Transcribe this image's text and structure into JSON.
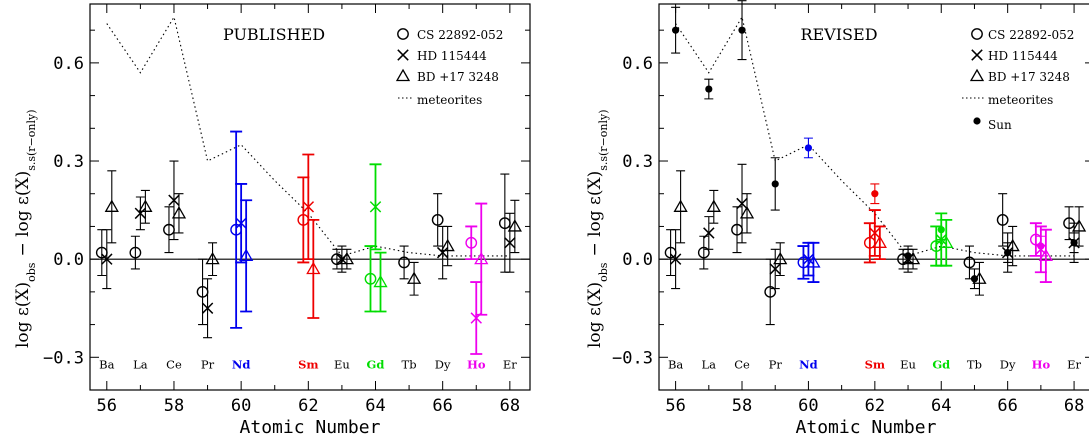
{
  "figure": {
    "ylabel_main": "log ε(X)",
    "ylabel_sub1": "obs",
    "ylabel_minus": "− log ε(X)",
    "ylabel_sub2": "s.s(r−only)",
    "xlabel": "Atomic Number"
  },
  "colors": {
    "black": "#000000",
    "Nd": "#0000ee",
    "Sm": "#ee0000",
    "Gd": "#00dd00",
    "Ho": "#ee00ee"
  },
  "chart_data": [
    {
      "type": "scatter",
      "title": "PUBLISHED",
      "xlabel": "Atomic Number",
      "ylabel": "log ε(X)obs − log ε(X)s.s(r−only)",
      "xlim": [
        55.5,
        68.6
      ],
      "ylim": [
        -0.4,
        0.78
      ],
      "xticks": [
        56,
        58,
        60,
        62,
        64,
        66,
        68
      ],
      "yticks": [
        -0.3,
        0.0,
        0.3,
        0.6
      ],
      "ytick_labels": [
        "−0.3",
        "0.0",
        "0.3",
        "0.6"
      ],
      "grid": false,
      "reference_line": 0.0,
      "legend": {
        "position": "top-right",
        "entries": [
          "CS 22892-052",
          "HD 115444",
          "BD +17 3248",
          "meteorites"
        ]
      },
      "element_labels": [
        {
          "label": "Ba",
          "z": 56,
          "color": "black"
        },
        {
          "label": "La",
          "z": 57,
          "color": "black"
        },
        {
          "label": "Ce",
          "z": 58,
          "color": "black"
        },
        {
          "label": "Pr",
          "z": 59,
          "color": "black"
        },
        {
          "label": "Nd",
          "z": 60,
          "color": "Nd"
        },
        {
          "label": "Sm",
          "z": 62,
          "color": "Sm"
        },
        {
          "label": "Eu",
          "z": 63,
          "color": "black"
        },
        {
          "label": "Gd",
          "z": 64,
          "color": "Gd"
        },
        {
          "label": "Tb",
          "z": 65,
          "color": "black"
        },
        {
          "label": "Dy",
          "z": 66,
          "color": "black"
        },
        {
          "label": "Ho",
          "z": 67,
          "color": "Ho"
        },
        {
          "label": "Er",
          "z": 68,
          "color": "black"
        }
      ],
      "meteorites": {
        "x": [
          56,
          57,
          58,
          59,
          60,
          61,
          62,
          63,
          64,
          65,
          66,
          67,
          68
        ],
        "y": [
          0.72,
          0.57,
          0.74,
          0.3,
          0.35,
          0.24,
          0.14,
          0.01,
          0.04,
          0.02,
          0.01,
          0.01,
          0.01
        ]
      },
      "series": [
        {
          "name": "CS 22892-052",
          "marker": "circle",
          "points": [
            {
              "x": 56,
              "y": 0.02,
              "err": 0.07,
              "color": "black"
            },
            {
              "x": 57,
              "y": 0.02,
              "err": 0.05,
              "color": "black"
            },
            {
              "x": 58,
              "y": 0.09,
              "err": 0.07,
              "color": "black"
            },
            {
              "x": 59,
              "y": -0.1,
              "err": 0.1,
              "color": "black"
            },
            {
              "x": 60,
              "y": 0.09,
              "err": 0.3,
              "color": "Nd"
            },
            {
              "x": 62,
              "y": 0.12,
              "err": 0.13,
              "color": "Sm"
            },
            {
              "x": 63,
              "y": 0.0,
              "err": 0.03,
              "color": "black"
            },
            {
              "x": 64,
              "y": -0.06,
              "err": 0.1,
              "color": "Gd"
            },
            {
              "x": 65,
              "y": -0.01,
              "err": 0.05,
              "color": "black"
            },
            {
              "x": 66,
              "y": 0.12,
              "err": 0.08,
              "color": "black"
            },
            {
              "x": 67,
              "y": 0.05,
              "err": 0.05,
              "color": "Ho"
            },
            {
              "x": 68,
              "y": 0.11,
              "err": 0.15,
              "color": "black"
            }
          ]
        },
        {
          "name": "HD 115444",
          "marker": "cross",
          "points": [
            {
              "x": 56,
              "y": 0.0,
              "err": 0.09,
              "color": "black"
            },
            {
              "x": 57,
              "y": 0.14,
              "err": 0.05,
              "color": "black"
            },
            {
              "x": 58,
              "y": 0.18,
              "err": 0.12,
              "color": "black"
            },
            {
              "x": 59,
              "y": -0.15,
              "err": 0.09,
              "color": "black"
            },
            {
              "x": 60,
              "y": 0.11,
              "err": 0.12,
              "color": "Nd"
            },
            {
              "x": 62,
              "y": 0.16,
              "err": 0.16,
              "color": "Sm"
            },
            {
              "x": 63,
              "y": 0.0,
              "err": 0.04,
              "color": "black"
            },
            {
              "x": 64,
              "y": 0.16,
              "err": 0.13,
              "color": "Gd"
            },
            {
              "x": 66,
              "y": 0.02,
              "err": 0.08,
              "color": "black"
            },
            {
              "x": 67,
              "y": -0.18,
              "err": 0.11,
              "color": "Ho"
            },
            {
              "x": 68,
              "y": 0.05,
              "err": 0.09,
              "color": "black"
            }
          ]
        },
        {
          "name": "BD +17 3248",
          "marker": "triangle",
          "points": [
            {
              "x": 56,
              "y": 0.16,
              "err": 0.11,
              "color": "black"
            },
            {
              "x": 57,
              "y": 0.16,
              "err": 0.05,
              "color": "black"
            },
            {
              "x": 58,
              "y": 0.14,
              "err": 0.06,
              "color": "black"
            },
            {
              "x": 59,
              "y": 0.0,
              "err": 0.05,
              "color": "black"
            },
            {
              "x": 60,
              "y": 0.01,
              "err": 0.17,
              "color": "Nd"
            },
            {
              "x": 62,
              "y": -0.03,
              "err": 0.15,
              "color": "Sm"
            },
            {
              "x": 63,
              "y": 0.0,
              "err": 0.03,
              "color": "black"
            },
            {
              "x": 64,
              "y": -0.07,
              "err": 0.09,
              "color": "Gd"
            },
            {
              "x": 65,
              "y": -0.06,
              "err": 0.05,
              "color": "black"
            },
            {
              "x": 66,
              "y": 0.04,
              "err": 0.06,
              "color": "black"
            },
            {
              "x": 67,
              "y": 0.0,
              "err": 0.17,
              "color": "Ho"
            },
            {
              "x": 68,
              "y": 0.1,
              "err": 0.08,
              "color": "black"
            }
          ]
        }
      ]
    },
    {
      "type": "scatter",
      "title": "REVISED",
      "xlabel": "Atomic Number",
      "ylabel": "log ε(X)obs − log ε(X)s.s(r−only)",
      "xlim": [
        55.5,
        68.6
      ],
      "ylim": [
        -0.4,
        0.78
      ],
      "xticks": [
        56,
        58,
        60,
        62,
        64,
        66,
        68
      ],
      "yticks": [
        -0.3,
        0.0,
        0.3,
        0.6
      ],
      "ytick_labels": [
        "−0.3",
        "0.0",
        "0.3",
        "0.6"
      ],
      "grid": false,
      "reference_line": 0.0,
      "legend": {
        "position": "top-right",
        "entries": [
          "CS 22892-052",
          "HD 115444",
          "BD +17 3248",
          "meteorites",
          "Sun"
        ]
      },
      "element_labels": [
        {
          "label": "Ba",
          "z": 56,
          "color": "black"
        },
        {
          "label": "La",
          "z": 57,
          "color": "black"
        },
        {
          "label": "Ce",
          "z": 58,
          "color": "black"
        },
        {
          "label": "Pr",
          "z": 59,
          "color": "black"
        },
        {
          "label": "Nd",
          "z": 60,
          "color": "Nd"
        },
        {
          "label": "Sm",
          "z": 62,
          "color": "Sm"
        },
        {
          "label": "Eu",
          "z": 63,
          "color": "black"
        },
        {
          "label": "Gd",
          "z": 64,
          "color": "Gd"
        },
        {
          "label": "Tb",
          "z": 65,
          "color": "black"
        },
        {
          "label": "Dy",
          "z": 66,
          "color": "black"
        },
        {
          "label": "Ho",
          "z": 67,
          "color": "Ho"
        },
        {
          "label": "Er",
          "z": 68,
          "color": "black"
        }
      ],
      "meteorites": {
        "x": [
          56,
          57,
          58,
          59,
          60,
          61,
          62,
          63,
          64,
          65,
          66,
          67,
          68
        ],
        "y": [
          0.72,
          0.57,
          0.74,
          0.3,
          0.35,
          0.24,
          0.14,
          0.01,
          0.04,
          0.02,
          0.01,
          0.01,
          0.01
        ]
      },
      "series": [
        {
          "name": "CS 22892-052",
          "marker": "circle",
          "points": [
            {
              "x": 56,
              "y": 0.02,
              "err": 0.07,
              "color": "black"
            },
            {
              "x": 57,
              "y": 0.02,
              "err": 0.05,
              "color": "black"
            },
            {
              "x": 58,
              "y": 0.09,
              "err": 0.07,
              "color": "black"
            },
            {
              "x": 59,
              "y": -0.1,
              "err": 0.1,
              "color": "black"
            },
            {
              "x": 60,
              "y": -0.01,
              "err": 0.05,
              "color": "Nd"
            },
            {
              "x": 62,
              "y": 0.05,
              "err": 0.06,
              "color": "Sm"
            },
            {
              "x": 63,
              "y": 0.0,
              "err": 0.03,
              "color": "black"
            },
            {
              "x": 64,
              "y": 0.04,
              "err": 0.06,
              "color": "Gd"
            },
            {
              "x": 65,
              "y": -0.01,
              "err": 0.05,
              "color": "black"
            },
            {
              "x": 66,
              "y": 0.12,
              "err": 0.08,
              "color": "black"
            },
            {
              "x": 67,
              "y": 0.06,
              "err": 0.05,
              "color": "Ho"
            },
            {
              "x": 68,
              "y": 0.11,
              "err": 0.05,
              "color": "black"
            }
          ]
        },
        {
          "name": "HD 115444",
          "marker": "cross",
          "points": [
            {
              "x": 56,
              "y": 0.0,
              "err": 0.09,
              "color": "black"
            },
            {
              "x": 57,
              "y": 0.08,
              "err": 0.05,
              "color": "black"
            },
            {
              "x": 58,
              "y": 0.17,
              "err": 0.12,
              "color": "black"
            },
            {
              "x": 59,
              "y": -0.03,
              "err": 0.06,
              "color": "black"
            },
            {
              "x": 60,
              "y": 0.0,
              "err": 0.05,
              "color": "Nd"
            },
            {
              "x": 62,
              "y": 0.08,
              "err": 0.07,
              "color": "Sm"
            },
            {
              "x": 63,
              "y": 0.0,
              "err": 0.04,
              "color": "black"
            },
            {
              "x": 64,
              "y": 0.06,
              "err": 0.08,
              "color": "Gd"
            },
            {
              "x": 66,
              "y": 0.02,
              "err": 0.06,
              "color": "black"
            },
            {
              "x": 67,
              "y": 0.03,
              "err": 0.07,
              "color": "Ho"
            },
            {
              "x": 68,
              "y": 0.05,
              "err": 0.06,
              "color": "black"
            }
          ]
        },
        {
          "name": "BD +17 3248",
          "marker": "triangle",
          "points": [
            {
              "x": 56,
              "y": 0.16,
              "err": 0.11,
              "color": "black"
            },
            {
              "x": 57,
              "y": 0.16,
              "err": 0.05,
              "color": "black"
            },
            {
              "x": 58,
              "y": 0.14,
              "err": 0.06,
              "color": "black"
            },
            {
              "x": 59,
              "y": 0.0,
              "err": 0.05,
              "color": "black"
            },
            {
              "x": 60,
              "y": -0.01,
              "err": 0.06,
              "color": "Nd"
            },
            {
              "x": 62,
              "y": 0.05,
              "err": 0.05,
              "color": "Sm"
            },
            {
              "x": 63,
              "y": 0.0,
              "err": 0.03,
              "color": "black"
            },
            {
              "x": 64,
              "y": 0.05,
              "err": 0.07,
              "color": "Gd"
            },
            {
              "x": 65,
              "y": -0.06,
              "err": 0.05,
              "color": "black"
            },
            {
              "x": 66,
              "y": 0.04,
              "err": 0.06,
              "color": "black"
            },
            {
              "x": 67,
              "y": 0.01,
              "err": 0.08,
              "color": "Ho"
            },
            {
              "x": 68,
              "y": 0.1,
              "err": 0.06,
              "color": "black"
            }
          ]
        },
        {
          "name": "Sun",
          "marker": "dot",
          "points": [
            {
              "x": 56,
              "y": 0.7,
              "err": 0.07,
              "color": "black"
            },
            {
              "x": 57,
              "y": 0.52,
              "err": 0.03,
              "color": "black"
            },
            {
              "x": 58,
              "y": 0.7,
              "err": 0.09,
              "color": "black"
            },
            {
              "x": 59,
              "y": 0.23,
              "err": 0.08,
              "color": "black"
            },
            {
              "x": 60,
              "y": 0.34,
              "err": 0.03,
              "color": "Nd"
            },
            {
              "x": 62,
              "y": 0.2,
              "err": 0.03,
              "color": "Sm"
            },
            {
              "x": 63,
              "y": 0.01,
              "err": 0.02,
              "color": "black"
            },
            {
              "x": 64,
              "y": 0.09,
              "err": 0.03,
              "color": "Gd"
            },
            {
              "x": 65,
              "y": -0.06,
              "err": 0.03,
              "color": "black"
            },
            {
              "x": 66,
              "y": 0.02,
              "err": 0.03,
              "color": "black"
            },
            {
              "x": 67,
              "y": 0.04,
              "err": 0.03,
              "color": "Ho"
            },
            {
              "x": 68,
              "y": 0.05,
              "err": 0.03,
              "color": "black"
            }
          ]
        }
      ]
    }
  ]
}
